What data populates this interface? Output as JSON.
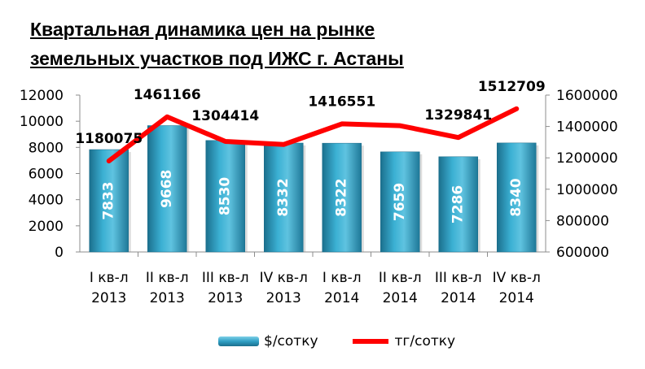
{
  "title_line1": "Квартальная динамика цен на рынке",
  "title_line2": "земельных участков под ИЖС г. Астаны",
  "colors": {
    "bar": "#2f9fc4",
    "line": "#ff0000"
  },
  "chart_data": {
    "type": "bar",
    "categories": [
      [
        "I кв-л",
        "2013"
      ],
      [
        "II кв-л",
        "2013"
      ],
      [
        "III кв-л",
        "2013"
      ],
      [
        "IV кв-л",
        "2013"
      ],
      [
        "I кв-л",
        "2014"
      ],
      [
        "II кв-л",
        "2014"
      ],
      [
        "III кв-л",
        "2014"
      ],
      [
        "IV кв-л",
        "2014"
      ]
    ],
    "series": [
      {
        "name": "$/сотку",
        "type": "bar",
        "axis": "left",
        "values": [
          7833,
          9668,
          8530,
          8332,
          8322,
          7659,
          7286,
          8340
        ]
      },
      {
        "name": "тг/сотку",
        "type": "line",
        "axis": "right",
        "values": [
          1180075,
          1461166,
          1304414,
          1285000,
          1416551,
          1405000,
          1329841,
          1512709
        ],
        "labels": [
          "1180075",
          "1461166",
          "1304414",
          "",
          "1416551",
          "",
          "1329841",
          "1512709"
        ]
      }
    ],
    "y_left": {
      "min": 0,
      "max": 12000,
      "ticks": [
        "0",
        "2000",
        "4000",
        "6000",
        "8000",
        "10000",
        "12000"
      ]
    },
    "y_right": {
      "min": 600000,
      "max": 1600000,
      "ticks": [
        "600000",
        "800000",
        "1000000",
        "1200000",
        "1400000",
        "1600000"
      ]
    },
    "legend_position": "bottom"
  }
}
